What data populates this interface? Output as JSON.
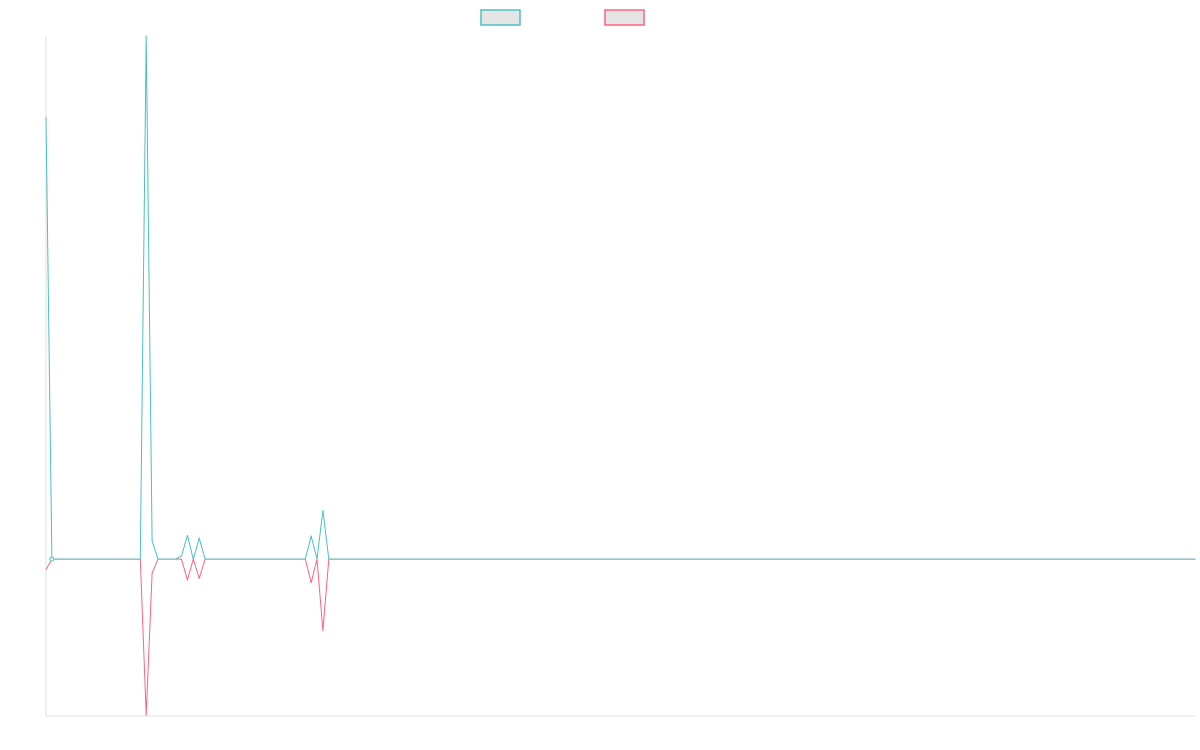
{
  "chart_data": {
    "type": "line",
    "title": "",
    "xlabel": "",
    "ylabel": "",
    "x_range": [
      0,
      195
    ],
    "ylim": [
      -0.3,
      1.0
    ],
    "grid": false,
    "legend_position": "top",
    "x": [
      0,
      1,
      2,
      16,
      17,
      18,
      19,
      22,
      23,
      24,
      25,
      26,
      27,
      44,
      45,
      46,
      47,
      48,
      195
    ],
    "series": [
      {
        "color": "#4bc0c0",
        "values": [
          0.845,
          0,
          0,
          0,
          1.0,
          0.035,
          0,
          0,
          0.006,
          0.045,
          0,
          0.04,
          0,
          0,
          0.044,
          0,
          0.093,
          0,
          0
        ]
      },
      {
        "color": "#ff6384",
        "values": [
          -0.02,
          0,
          0,
          0,
          -0.298,
          -0.027,
          0,
          0,
          0,
          -0.04,
          0,
          -0.037,
          0,
          0,
          -0.045,
          0,
          -0.137,
          0,
          0
        ]
      }
    ],
    "legend_fill": "#e5e5e5",
    "axis_color": "#e0e0e0"
  }
}
